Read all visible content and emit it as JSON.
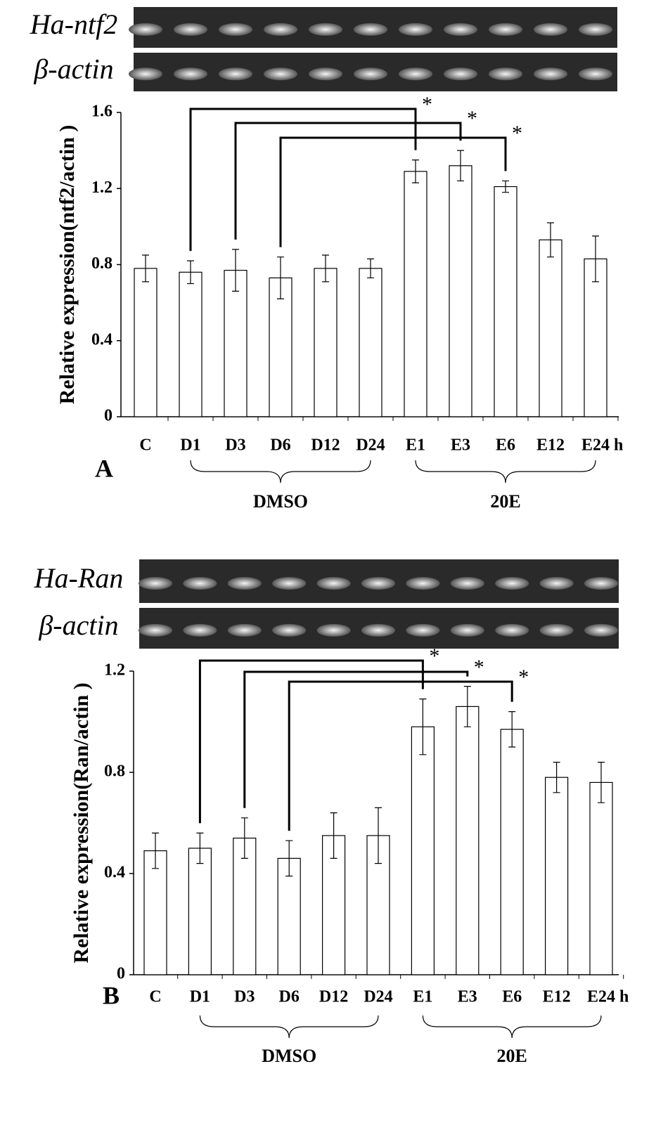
{
  "chart_data": [
    {
      "type": "bar",
      "panel_label": "A",
      "gel_labels": [
        "Ha-ntf2",
        "β-actin"
      ],
      "y_label": "Relative expression(ntf2/actin )",
      "categories": [
        "C",
        "D1",
        "D3",
        "D6",
        "D12",
        "D24",
        "E1",
        "E3",
        "E6",
        "E12",
        "E24"
      ],
      "x_unit": "h",
      "values": [
        0.78,
        0.76,
        0.77,
        0.73,
        0.78,
        0.78,
        1.29,
        1.32,
        1.21,
        0.93,
        0.83
      ],
      "errors": [
        0.07,
        0.06,
        0.11,
        0.11,
        0.07,
        0.05,
        0.06,
        0.08,
        0.03,
        0.09,
        0.12
      ],
      "color": "#ffffff",
      "ylim": [
        0,
        1.6
      ],
      "yticks": [
        0,
        0.4,
        0.8,
        1.2,
        1.6
      ],
      "comparisons": [
        {
          "from": "D1",
          "to": "E1",
          "label": "*"
        },
        {
          "from": "D3",
          "to": "E3",
          "label": "*"
        },
        {
          "from": "D6",
          "to": "E6",
          "label": "*"
        }
      ],
      "groups": [
        {
          "label": "DMSO",
          "from": "D1",
          "to": "D24"
        },
        {
          "label": "20E",
          "from": "E1",
          "to": "E24"
        }
      ]
    },
    {
      "type": "bar",
      "panel_label": "B",
      "gel_labels": [
        "Ha-Ran",
        "β-actin"
      ],
      "y_label": "Relative expression(Ran/actin )",
      "categories": [
        "C",
        "D1",
        "D3",
        "D6",
        "D12",
        "D24",
        "E1",
        "E3",
        "E6",
        "E12",
        "E24"
      ],
      "x_unit": "h",
      "values": [
        0.49,
        0.5,
        0.54,
        0.46,
        0.55,
        0.55,
        0.98,
        1.06,
        0.97,
        0.78,
        0.76
      ],
      "errors": [
        0.07,
        0.06,
        0.08,
        0.07,
        0.09,
        0.11,
        0.11,
        0.08,
        0.07,
        0.06,
        0.08
      ],
      "color": "#ffffff",
      "ylim": [
        0,
        1.2
      ],
      "yticks": [
        0,
        0.4,
        0.8,
        1.2
      ],
      "comparisons": [
        {
          "from": "D1",
          "to": "E1",
          "label": "*"
        },
        {
          "from": "D3",
          "to": "E3",
          "label": "*"
        },
        {
          "from": "D6",
          "to": "E6",
          "label": "*"
        }
      ],
      "groups": [
        {
          "label": "DMSO",
          "from": "D1",
          "to": "D24"
        },
        {
          "label": "20E",
          "from": "E1",
          "to": "E24"
        }
      ]
    }
  ]
}
